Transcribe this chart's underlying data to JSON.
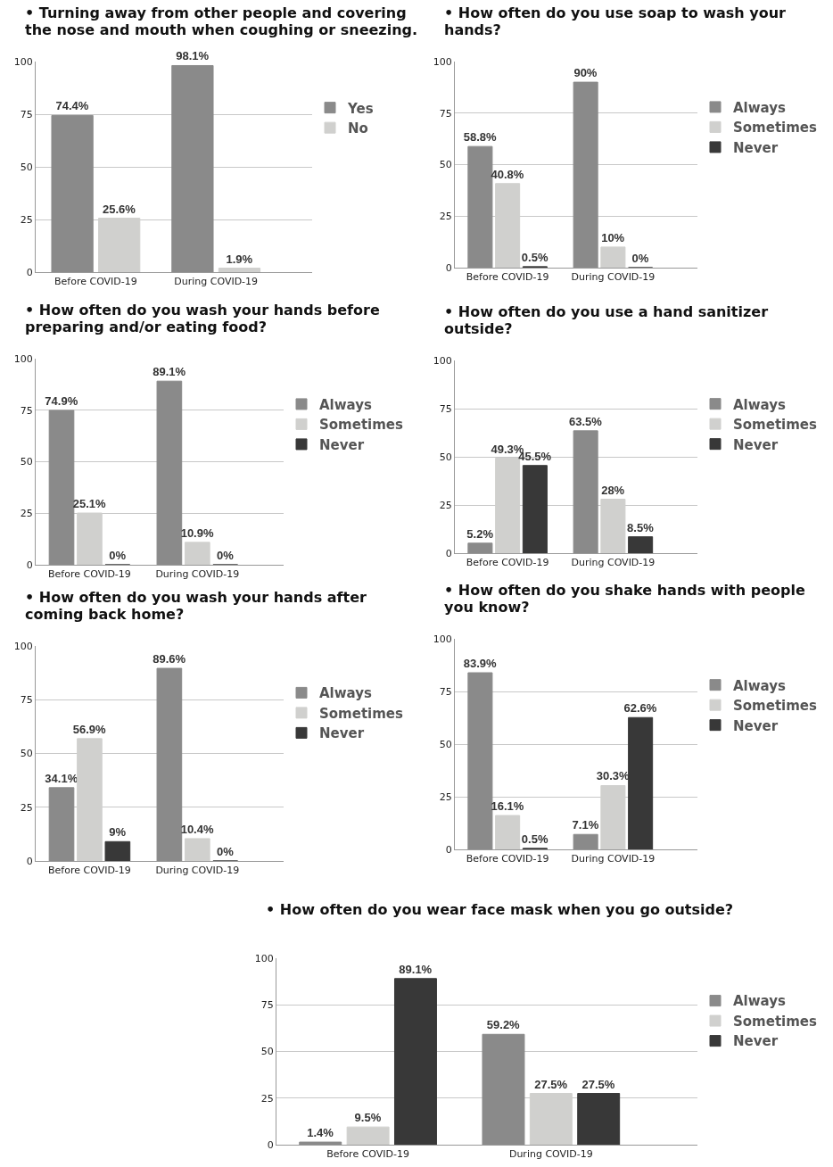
{
  "chart_data": [
    {
      "type": "bar",
      "title": "• Turning away from other people and covering the nose and mouth when coughing or sneezing.",
      "categories": [
        "Before COVID-19",
        "During COVID-19"
      ],
      "ylim": [
        0,
        100
      ],
      "yticks": [
        0,
        25,
        50,
        75,
        100
      ],
      "grid": "y",
      "legend": "right",
      "series": [
        {
          "name": "Yes",
          "color": "#8a8a8a",
          "values": [
            74.4,
            98.1
          ],
          "value_labels": [
            "74.4%",
            "98.1%"
          ]
        },
        {
          "name": "No",
          "color": "#d0d0ce",
          "values": [
            25.6,
            1.9
          ],
          "value_labels": [
            "25.6%",
            "1.9%"
          ]
        }
      ]
    },
    {
      "type": "bar",
      "title": "• How often do you use soap to wash your hands?",
      "categories": [
        "Before COVID-19",
        "During COVID-19"
      ],
      "ylim": [
        0,
        100
      ],
      "yticks": [
        0,
        25,
        50,
        75,
        100
      ],
      "grid": "y",
      "legend": "right",
      "series": [
        {
          "name": "Always",
          "color": "#8a8a8a",
          "values": [
            58.8,
            90
          ],
          "value_labels": [
            "58.8%",
            "90%"
          ]
        },
        {
          "name": "Sometimes",
          "color": "#d0d0ce",
          "values": [
            40.8,
            10
          ],
          "value_labels": [
            "40.8%",
            "10%"
          ]
        },
        {
          "name": "Never",
          "color": "#383838",
          "values": [
            0.5,
            0
          ],
          "value_labels": [
            "0.5%",
            "0%"
          ]
        }
      ]
    },
    {
      "type": "bar",
      "title": "• How often do you wash your hands before preparing and/or eating food?",
      "categories": [
        "Before COVID-19",
        "During COVID-19"
      ],
      "ylim": [
        0,
        100
      ],
      "yticks": [
        0,
        25,
        50,
        75,
        100
      ],
      "grid": "y",
      "legend": "right",
      "series": [
        {
          "name": "Always",
          "color": "#8a8a8a",
          "values": [
            74.9,
            89.1
          ],
          "value_labels": [
            "74.9%",
            "89.1%"
          ]
        },
        {
          "name": "Sometimes",
          "color": "#d0d0ce",
          "values": [
            25.1,
            10.9
          ],
          "value_labels": [
            "25.1%",
            "10.9%"
          ]
        },
        {
          "name": "Never",
          "color": "#383838",
          "values": [
            0,
            0
          ],
          "value_labels": [
            "0%",
            "0%"
          ]
        }
      ]
    },
    {
      "type": "bar",
      "title": "• How often do you use a hand sanitizer outside?",
      "categories": [
        "Before COVID-19",
        "During COVID-19"
      ],
      "ylim": [
        0,
        100
      ],
      "yticks": [
        0,
        25,
        50,
        75,
        100
      ],
      "grid": "y",
      "legend": "right",
      "series": [
        {
          "name": "Always",
          "color": "#8a8a8a",
          "values": [
            5.2,
            63.5
          ],
          "value_labels": [
            "5.2%",
            "63.5%"
          ]
        },
        {
          "name": "Sometimes",
          "color": "#d0d0ce",
          "values": [
            49.3,
            28
          ],
          "value_labels": [
            "49.3%",
            "28%"
          ]
        },
        {
          "name": "Never",
          "color": "#383838",
          "values": [
            45.5,
            8.5
          ],
          "value_labels": [
            "45.5%",
            "8.5%"
          ]
        }
      ]
    },
    {
      "type": "bar",
      "title": "• How often do you wash your hands after coming back home?",
      "categories": [
        "Before COVID-19",
        "During COVID-19"
      ],
      "ylim": [
        0,
        100
      ],
      "yticks": [
        0,
        25,
        50,
        75,
        100
      ],
      "grid": "y",
      "legend": "right",
      "series": [
        {
          "name": "Always",
          "color": "#8a8a8a",
          "values": [
            34.1,
            89.6
          ],
          "value_labels": [
            "34.1%",
            "89.6%"
          ]
        },
        {
          "name": "Sometimes",
          "color": "#d0d0ce",
          "values": [
            56.9,
            10.4
          ],
          "value_labels": [
            "56.9%",
            "10.4%"
          ]
        },
        {
          "name": "Never",
          "color": "#383838",
          "values": [
            9,
            0
          ],
          "value_labels": [
            "9%",
            "0%"
          ]
        }
      ]
    },
    {
      "type": "bar",
      "title": "• How often do you shake hands with people you know?",
      "categories": [
        "Before COVID-19",
        "During COVID-19"
      ],
      "ylim": [
        0,
        100
      ],
      "yticks": [
        0,
        25,
        50,
        75,
        100
      ],
      "grid": "y",
      "legend": "right",
      "series": [
        {
          "name": "Always",
          "color": "#8a8a8a",
          "values": [
            83.9,
            7.1
          ],
          "value_labels": [
            "83.9%",
            "7.1%"
          ]
        },
        {
          "name": "Sometimes",
          "color": "#d0d0ce",
          "values": [
            16.1,
            30.3
          ],
          "value_labels": [
            "16.1%",
            "30.3%"
          ]
        },
        {
          "name": "Never",
          "color": "#383838",
          "values": [
            0.5,
            62.6
          ],
          "value_labels": [
            "0.5%",
            "62.6%"
          ]
        }
      ]
    },
    {
      "type": "bar",
      "title": "• How often do you wear face mask when you go outside?",
      "categories": [
        "Before COVID-19",
        "During COVID-19"
      ],
      "ylim": [
        0,
        100
      ],
      "yticks": [
        0,
        25,
        50,
        75,
        100
      ],
      "grid": "y",
      "legend": "right",
      "series": [
        {
          "name": "Always",
          "color": "#8a8a8a",
          "values": [
            1.4,
            59.2
          ],
          "value_labels": [
            "1.4%",
            "59.2%"
          ]
        },
        {
          "name": "Sometimes",
          "color": "#d0d0ce",
          "values": [
            9.5,
            27.5
          ],
          "value_labels": [
            "9.5%",
            "27.5%"
          ]
        },
        {
          "name": "Never",
          "color": "#383838",
          "values": [
            89.1,
            27.5
          ],
          "value_labels": [
            "89.1%",
            "27.5%"
          ]
        }
      ]
    }
  ]
}
